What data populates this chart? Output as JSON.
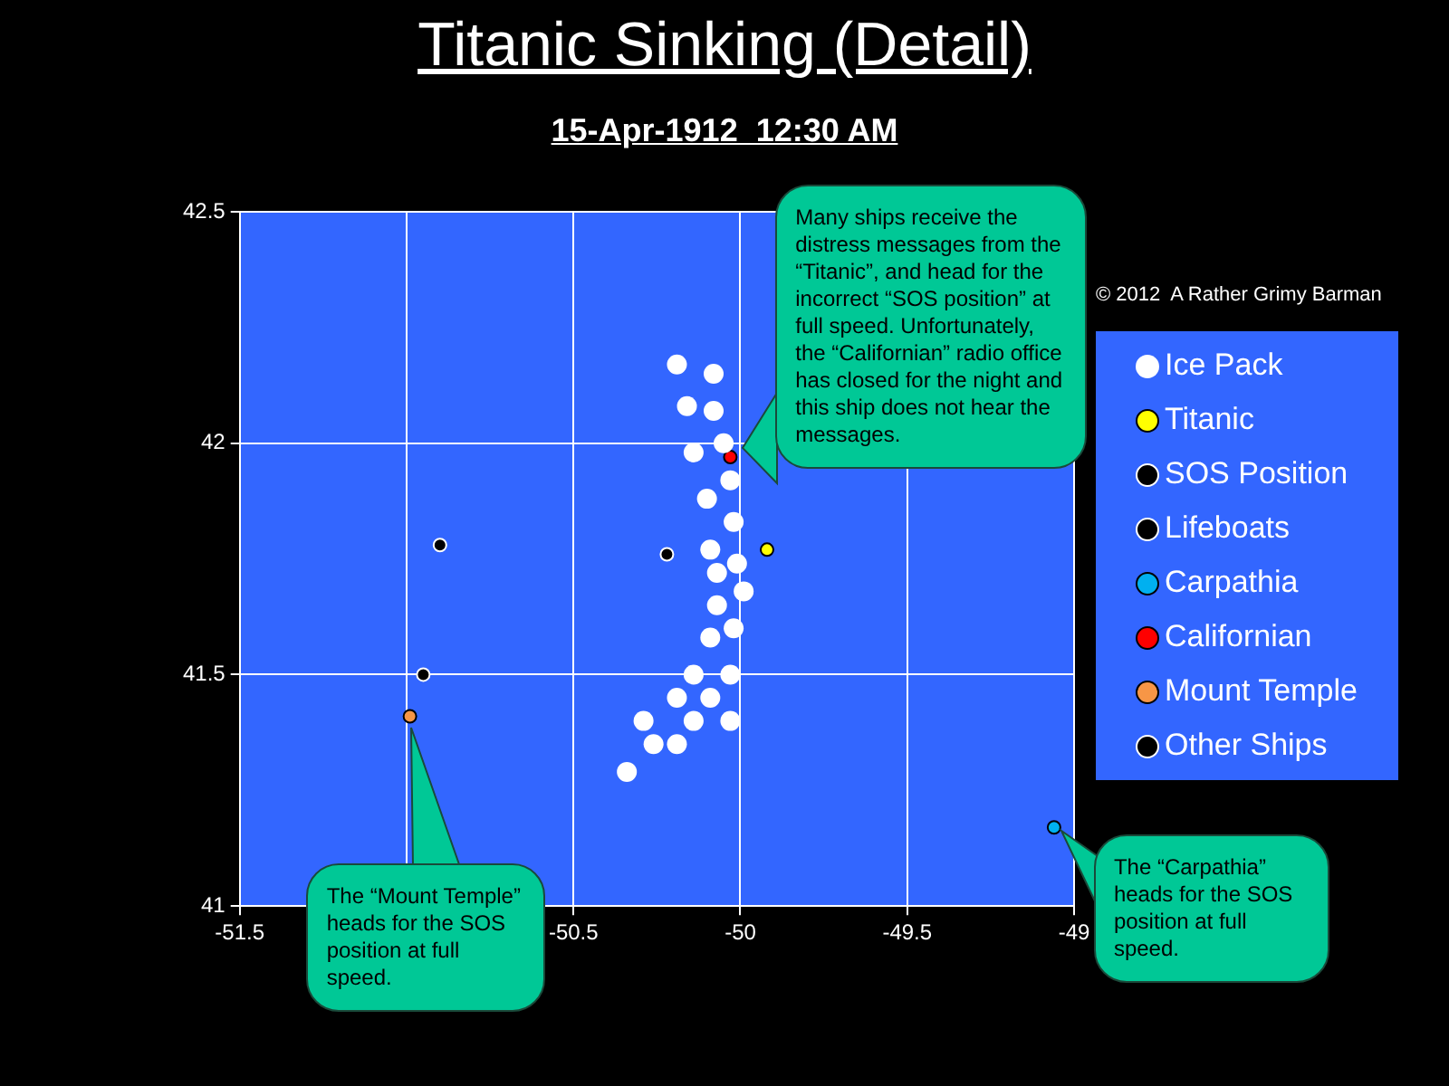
{
  "chart_data": {
    "type": "scatter",
    "title": "Titanic Sinking (Detail)",
    "subtitle": "15-Apr-1912  12:30 AM",
    "xlim": [
      -51.5,
      -49
    ],
    "xticks": [
      -51.5,
      {
        "value": -51,
        "label": null
      },
      -50.5,
      -50,
      -49.5,
      -49
    ],
    "ylim": [
      41,
      42.5
    ],
    "yticks": [
      41,
      41.5,
      42,
      42.5
    ],
    "grid": true,
    "legend": "right",
    "marker": "circle",
    "series": [
      {
        "name": "Ice Pack",
        "color": "#ffffff",
        "x": [
          -50.19,
          -50.08,
          -50.16,
          -50.08,
          -50.05,
          -50.14,
          -50.03,
          -50.1,
          -50.02,
          -50.09,
          -50.01,
          -50.07,
          -49.99,
          -50.07,
          -50.02,
          -50.09,
          -50.14,
          -50.03,
          -50.19,
          -50.09,
          -50.29,
          -50.14,
          -50.03,
          -50.26,
          -50.19,
          -50.34
        ],
        "values": [
          42.17,
          42.15,
          42.08,
          42.07,
          42.0,
          41.98,
          41.92,
          41.88,
          41.83,
          41.77,
          41.74,
          41.72,
          41.68,
          41.65,
          41.6,
          41.58,
          41.5,
          41.5,
          41.45,
          41.45,
          41.4,
          41.4,
          41.4,
          41.35,
          41.35,
          41.29
        ]
      },
      {
        "name": "Titanic",
        "color": "#ffff00",
        "x": [
          -49.92
        ],
        "values": [
          41.77
        ]
      },
      {
        "name": "SOS Position",
        "color": "#000000",
        "x": [
          -50.22
        ],
        "values": [
          41.76
        ]
      },
      {
        "name": "Lifeboats",
        "color": "#000000",
        "x": [
          -50.9,
          -50.95
        ],
        "values": [
          41.78,
          41.5
        ]
      },
      {
        "name": "Carpathia",
        "color": "#00b0f0",
        "x": [
          -49.06
        ],
        "values": [
          41.17
        ]
      },
      {
        "name": "Californian",
        "color": "#ff0000",
        "x": [
          -50.03
        ],
        "values": [
          41.97
        ]
      },
      {
        "name": "Mount Temple",
        "color": "#f79646",
        "x": [
          -50.99
        ],
        "values": [
          41.41
        ]
      },
      {
        "name": "Other Ships",
        "color": "#000000"
      }
    ],
    "annotations": [
      "© 2012  A Rather Grimy Barman",
      "Many ships receive the distress messages from the “Titanic”, and head for the incorrect “SOS position” at full speed. Unfortunately, the “Californian” radio office has closed for the night and this ship does not hear the messages.",
      {
        "text": "The “Mount Temple” heads for the SOS position at full speed.",
        "x": -50.99,
        "y": 41.41
      },
      {
        "text": "The “Carpathia” heads for the SOS position at full speed.",
        "x": -49.06,
        "y": 41.17
      }
    ]
  }
}
